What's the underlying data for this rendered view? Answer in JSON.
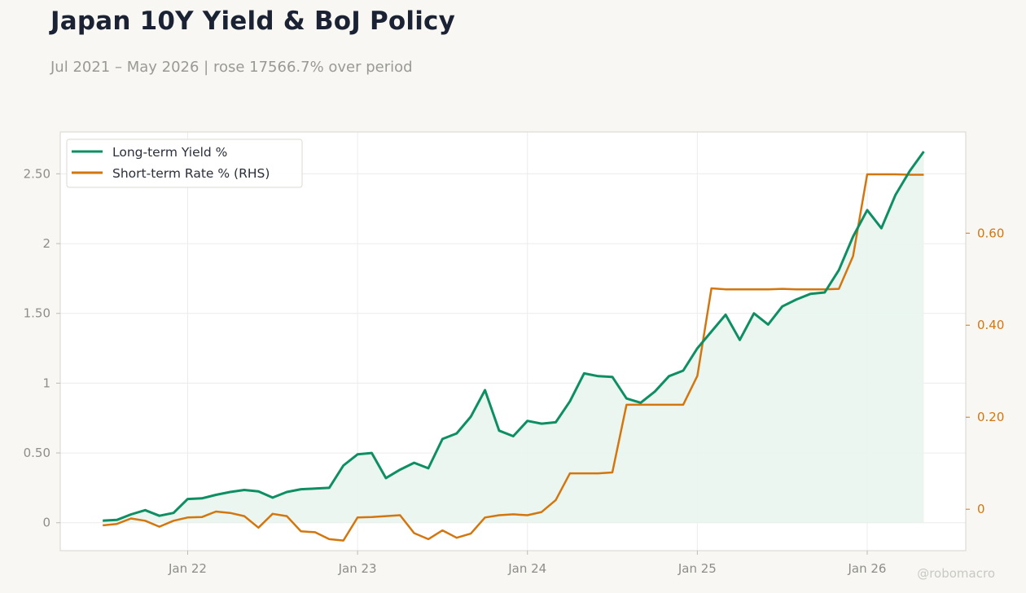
{
  "header": {
    "title": "Japan 10Y Yield & BoJ Policy",
    "subtitle": "Jul 2021 – May 2026 | rose 17566.7% over period",
    "watermark": "@robomacro"
  },
  "colors": {
    "background": "#f8f7f3",
    "plot_background": "#ffffff",
    "yield_line": "#0e8f63",
    "yield_fill": "#e9f5f0",
    "rate_line": "#d4760e",
    "right_axis": "#d4760e",
    "grid": "#ececec",
    "frame": "#d8d6cf"
  },
  "chart_data": {
    "type": "line",
    "title": "Japan 10Y Yield & BoJ Policy",
    "subtitle": "Jul 2021 – May 2026 | rose 17566.7% over period",
    "legend_position": "top-left",
    "grid": true,
    "x_ticks": [
      "Jan 22",
      "Jan 23",
      "Jan 24",
      "Jan 25",
      "Jan 26"
    ],
    "y_left": {
      "lim": [
        -0.2,
        2.8
      ],
      "ticks": [
        0,
        0.5,
        1,
        1.5,
        2,
        2.5
      ],
      "tick_labels": [
        "0",
        "0.50",
        "1",
        "1.50",
        "2",
        "2.50"
      ]
    },
    "y_right": {
      "lim": [
        -0.09,
        0.82
      ],
      "ticks": [
        0,
        0.2,
        0.4,
        0.6
      ],
      "tick_labels": [
        "0",
        "0.20",
        "0.40",
        "0.60"
      ]
    },
    "x": [
      "2021-07",
      "2021-08",
      "2021-09",
      "2021-10",
      "2021-11",
      "2021-12",
      "2022-01",
      "2022-02",
      "2022-03",
      "2022-04",
      "2022-05",
      "2022-06",
      "2022-07",
      "2022-08",
      "2022-09",
      "2022-10",
      "2022-11",
      "2022-12",
      "2023-01",
      "2023-02",
      "2023-03",
      "2023-04",
      "2023-05",
      "2023-06",
      "2023-07",
      "2023-08",
      "2023-09",
      "2023-10",
      "2023-11",
      "2023-12",
      "2024-01",
      "2024-02",
      "2024-03",
      "2024-04",
      "2024-05",
      "2024-06",
      "2024-07",
      "2024-08",
      "2024-09",
      "2024-10",
      "2024-11",
      "2024-12",
      "2025-01",
      "2025-02",
      "2025-03",
      "2025-04",
      "2025-05",
      "2025-06",
      "2025-07",
      "2025-08",
      "2025-09",
      "2025-10",
      "2025-11",
      "2025-12",
      "2026-01",
      "2026-02",
      "2026-03",
      "2026-04",
      "2026-05"
    ],
    "series": [
      {
        "name": "Long-term Yield %",
        "axis": "left",
        "values": [
          0.015,
          0.02,
          0.06,
          0.09,
          0.05,
          0.07,
          0.17,
          0.175,
          0.2,
          0.22,
          0.235,
          0.225,
          0.18,
          0.22,
          0.24,
          0.245,
          0.25,
          0.41,
          0.49,
          0.5,
          0.32,
          0.38,
          0.43,
          0.39,
          0.6,
          0.64,
          0.76,
          0.95,
          0.66,
          0.62,
          0.73,
          0.71,
          0.72,
          0.87,
          1.07,
          1.05,
          1.045,
          0.89,
          0.86,
          0.94,
          1.05,
          1.09,
          1.25,
          1.37,
          1.49,
          1.31,
          1.5,
          1.42,
          1.55,
          1.6,
          1.64,
          1.65,
          1.81,
          2.05,
          2.24,
          2.11,
          2.35,
          2.52,
          2.66
        ]
      },
      {
        "name": "Short-term Rate % (RHS)",
        "axis": "right",
        "values": [
          -0.035,
          -0.032,
          -0.02,
          -0.025,
          -0.038,
          -0.025,
          -0.018,
          -0.017,
          -0.005,
          -0.008,
          -0.015,
          -0.04,
          -0.01,
          -0.015,
          -0.048,
          -0.05,
          -0.065,
          -0.068,
          -0.018,
          -0.017,
          -0.015,
          -0.013,
          -0.052,
          -0.065,
          -0.046,
          -0.062,
          -0.053,
          -0.018,
          -0.013,
          -0.011,
          -0.013,
          -0.006,
          0.02,
          0.078,
          0.078,
          0.078,
          0.08,
          0.227,
          0.227,
          0.227,
          0.227,
          0.227,
          0.29,
          0.48,
          0.478,
          0.478,
          0.478,
          0.478,
          0.479,
          0.478,
          0.478,
          0.478,
          0.479,
          0.55,
          0.728,
          0.728,
          0.728,
          0.727,
          0.727
        ]
      }
    ]
  }
}
